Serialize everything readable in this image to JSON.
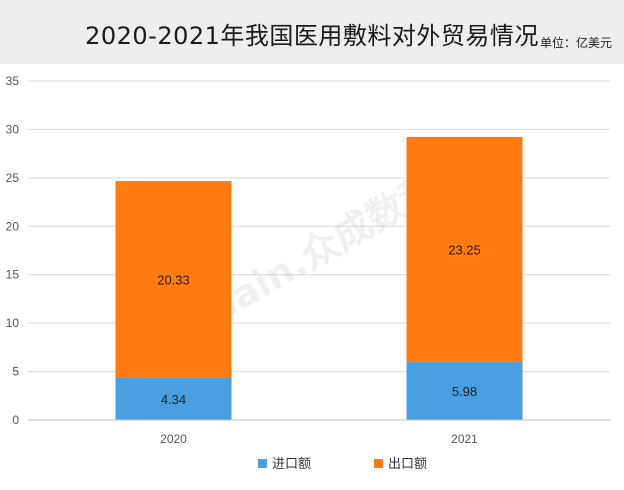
{
  "header": {
    "title": "2020-2021年我国医用敷料对外贸易情况",
    "unit": "单位：亿美元"
  },
  "watermark": {
    "text": "Joinchain.众成数科"
  },
  "colors": {
    "import": "#4a9fe0",
    "export": "#ff7b10",
    "grid": "#d9d9d9",
    "axis_text": "#555555"
  },
  "chart_data": {
    "type": "bar",
    "stacked": true,
    "title": "2020-2021年我国医用敷料对外贸易情况",
    "xlabel": "",
    "ylabel": "",
    "categories": [
      "2020",
      "2021"
    ],
    "series": [
      {
        "name": "进口额",
        "values": [
          4.34,
          5.98
        ]
      },
      {
        "name": "出口额",
        "values": [
          20.33,
          23.25
        ]
      }
    ],
    "ylim": [
      0,
      35
    ],
    "yticks": [
      0,
      5,
      10,
      15,
      20,
      25,
      30,
      35
    ],
    "grid": true,
    "legend": "bottom",
    "data_labels": true
  }
}
